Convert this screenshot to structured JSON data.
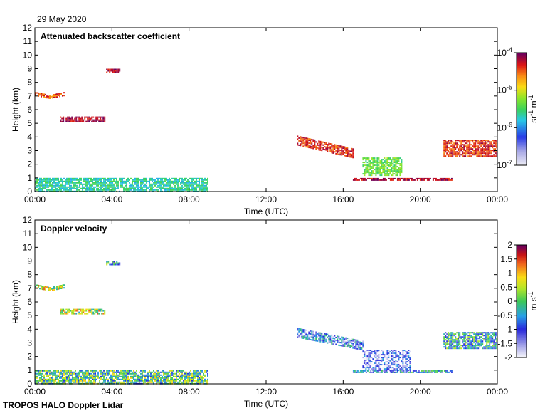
{
  "date": "29 May 2020",
  "footer": "TROPOS HALO Doppler Lidar",
  "chart_data": [
    {
      "type": "heatmap",
      "title": "Attenuated backscatter coefficient",
      "xlabel": "Time (UTC)",
      "ylabel": "Height (km)",
      "xticks": [
        "00:00",
        "04:00",
        "08:00",
        "12:00",
        "16:00",
        "20:00",
        "00:00"
      ],
      "yticks": [
        "0",
        "1",
        "2",
        "3",
        "4",
        "5",
        "6",
        "7",
        "8",
        "9",
        "10",
        "11",
        "12"
      ],
      "xlim_hours": [
        0,
        24
      ],
      "ylim_km": [
        0,
        12
      ],
      "colorbar": {
        "label": "sr-1 m-1",
        "scale": "log",
        "range": [
          1e-07,
          0.0001
        ],
        "ticks": [
          "10-7",
          "10-6",
          "10-5",
          "10-4"
        ]
      },
      "layers": [
        {
          "t0": 0.0,
          "t1": 9.0,
          "h0": 0.0,
          "h1": 1.0,
          "value": "low (~2e-6)",
          "desc": "boundary layer"
        },
        {
          "t0": 0.0,
          "t1": 1.5,
          "h0": 6.5,
          "h1": 7.3,
          "value": "~2e-5"
        },
        {
          "t0": 1.3,
          "t1": 3.6,
          "h0": 5.1,
          "h1": 5.5,
          "value": "~5e-5"
        },
        {
          "t0": 3.7,
          "t1": 4.4,
          "h0": 8.7,
          "h1": 9.0,
          "value": "~5e-5"
        },
        {
          "t0": 13.6,
          "t1": 16.5,
          "h0": 2.8,
          "h1": 4.1,
          "value": "~3e-5"
        },
        {
          "t0": 17.0,
          "t1": 19.0,
          "h0": 1.2,
          "h1": 2.5,
          "value": "~1e-6"
        },
        {
          "t0": 16.5,
          "t1": 21.6,
          "h0": 0.7,
          "h1": 1.1,
          "value": "~5e-5"
        },
        {
          "t0": 21.2,
          "t1": 24.0,
          "h0": 2.6,
          "h1": 3.8,
          "value": "~3e-5"
        }
      ]
    },
    {
      "type": "heatmap",
      "title": "Doppler velocity",
      "xlabel": "Time (UTC)",
      "ylabel": "Height (km)",
      "xticks": [
        "00:00",
        "04:00",
        "08:00",
        "12:00",
        "16:00",
        "20:00",
        "00:00"
      ],
      "yticks": [
        "0",
        "1",
        "2",
        "3",
        "4",
        "5",
        "6",
        "7",
        "8",
        "9",
        "10",
        "11",
        "12"
      ],
      "xlim_hours": [
        0,
        24
      ],
      "ylim_km": [
        0,
        12
      ],
      "colorbar": {
        "label": "m s-1",
        "scale": "linear",
        "range": [
          -2,
          2
        ],
        "ticks": [
          "2",
          "1.5",
          "1",
          "0.5",
          "0",
          "-0.5",
          "-1",
          "-1.5",
          "-2"
        ]
      },
      "layers": [
        {
          "t0": 0.0,
          "t1": 9.0,
          "h0": 0.0,
          "h1": 1.0,
          "value": "mixed -1 to 1"
        },
        {
          "t0": 0.0,
          "t1": 1.5,
          "h0": 6.5,
          "h1": 7.3,
          "value": "~0.5"
        },
        {
          "t0": 1.3,
          "t1": 3.6,
          "h0": 5.1,
          "h1": 5.5,
          "value": "~0.5"
        },
        {
          "t0": 3.7,
          "t1": 4.4,
          "h0": 8.7,
          "h1": 9.0,
          "value": "~-0.3"
        },
        {
          "t0": 13.6,
          "t1": 17.0,
          "h0": 2.8,
          "h1": 4.1,
          "value": "~-1.0"
        },
        {
          "t0": 17.0,
          "t1": 19.5,
          "h0": 1.0,
          "h1": 2.5,
          "value": "~-1.5"
        },
        {
          "t0": 16.5,
          "t1": 21.6,
          "h0": 0.7,
          "h1": 1.1,
          "value": "~-0.8"
        },
        {
          "t0": 21.2,
          "t1": 24.0,
          "h0": 2.6,
          "h1": 3.8,
          "value": "~-0.5"
        }
      ]
    }
  ]
}
